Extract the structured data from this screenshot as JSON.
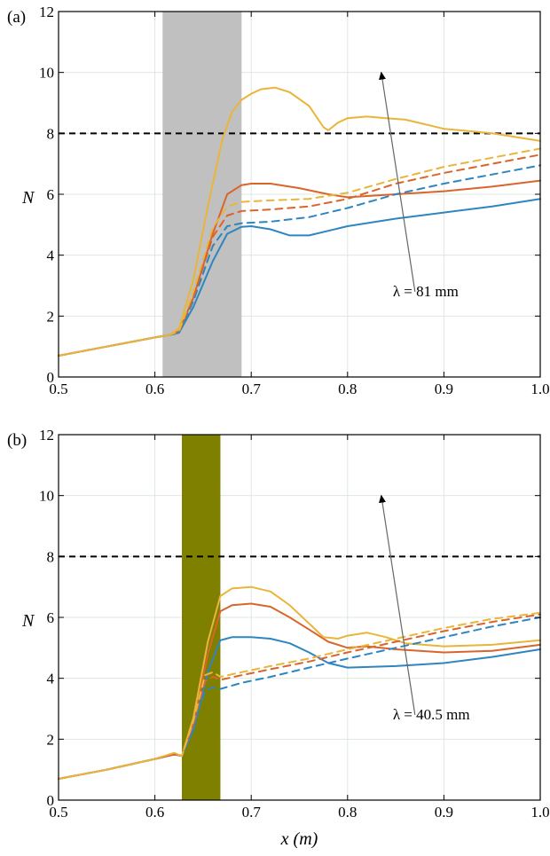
{
  "colors": {
    "series_1": "#2E86C1",
    "series_2": "#D9652B",
    "series_3": "#E9B53A",
    "threshold": "#000000",
    "grid": "#dde8dd",
    "band_a": "#c0c0c0",
    "band_b": "#808000",
    "arrow": "#666666"
  },
  "chart_data": [
    {
      "type": "line",
      "panel_label": "(a)",
      "xlim": [
        0.5,
        1.0
      ],
      "ylim": [
        0,
        12
      ],
      "xticks": [
        "0.5",
        "0.6",
        "0.7",
        "0.8",
        "0.9",
        "1.0"
      ],
      "yticks": [
        "0",
        "2",
        "4",
        "6",
        "8",
        "10",
        "12"
      ],
      "ylabel": "N",
      "grid": true,
      "shaded_band": [
        0.608,
        0.69
      ],
      "threshold_y": 8,
      "annotation": "λ = 81 mm",
      "arrow_from": [
        0.87,
        2.8
      ],
      "arrow_to": [
        0.835,
        10.0
      ],
      "series": [
        {
          "style": "solid",
          "color_key": "series_1",
          "x": [
            0.5,
            0.55,
            0.6,
            0.615,
            0.625,
            0.64,
            0.66,
            0.675,
            0.69,
            0.7,
            0.72,
            0.74,
            0.76,
            0.78,
            0.8,
            0.85,
            0.9,
            0.95,
            1.0
          ],
          "y": [
            0.7,
            1.0,
            1.3,
            1.38,
            1.45,
            2.3,
            3.8,
            4.7,
            4.93,
            4.95,
            4.85,
            4.65,
            4.65,
            4.8,
            4.95,
            5.2,
            5.4,
            5.6,
            5.85
          ]
        },
        {
          "style": "solid",
          "color_key": "series_2",
          "x": [
            0.5,
            0.55,
            0.6,
            0.615,
            0.625,
            0.64,
            0.66,
            0.675,
            0.69,
            0.7,
            0.72,
            0.75,
            0.78,
            0.8,
            0.85,
            0.9,
            0.95,
            1.0
          ],
          "y": [
            0.7,
            1.0,
            1.3,
            1.38,
            1.5,
            2.6,
            4.7,
            6.0,
            6.3,
            6.35,
            6.35,
            6.2,
            6.0,
            5.9,
            6.0,
            6.1,
            6.25,
            6.45
          ]
        },
        {
          "style": "solid",
          "color_key": "series_3",
          "x": [
            0.5,
            0.55,
            0.6,
            0.615,
            0.625,
            0.64,
            0.655,
            0.67,
            0.68,
            0.69,
            0.7,
            0.71,
            0.725,
            0.74,
            0.76,
            0.775,
            0.78,
            0.79,
            0.8,
            0.82,
            0.84,
            0.86,
            0.88,
            0.9,
            0.95,
            1.0
          ],
          "y": [
            0.7,
            1.0,
            1.3,
            1.38,
            1.6,
            3.2,
            5.6,
            7.8,
            8.7,
            9.1,
            9.3,
            9.45,
            9.5,
            9.35,
            8.9,
            8.2,
            8.1,
            8.35,
            8.5,
            8.55,
            8.5,
            8.45,
            8.3,
            8.15,
            8.0,
            7.75
          ]
        },
        {
          "style": "dashed",
          "color_key": "series_1",
          "x": [
            0.5,
            0.55,
            0.6,
            0.615,
            0.625,
            0.64,
            0.66,
            0.675,
            0.69,
            0.72,
            0.76,
            0.8,
            0.85,
            0.9,
            0.95,
            1.0
          ],
          "y": [
            0.7,
            1.0,
            1.3,
            1.38,
            1.45,
            2.5,
            4.3,
            4.95,
            5.05,
            5.1,
            5.25,
            5.55,
            6.0,
            6.35,
            6.65,
            6.95
          ]
        },
        {
          "style": "dashed",
          "color_key": "series_2",
          "x": [
            0.5,
            0.55,
            0.6,
            0.615,
            0.625,
            0.64,
            0.66,
            0.675,
            0.69,
            0.72,
            0.76,
            0.8,
            0.85,
            0.9,
            0.95,
            1.0
          ],
          "y": [
            0.7,
            1.0,
            1.3,
            1.38,
            1.5,
            2.6,
            4.6,
            5.3,
            5.45,
            5.5,
            5.6,
            5.85,
            6.35,
            6.7,
            7.0,
            7.3
          ]
        },
        {
          "style": "dashed",
          "color_key": "series_3",
          "x": [
            0.5,
            0.55,
            0.6,
            0.615,
            0.625,
            0.64,
            0.66,
            0.675,
            0.69,
            0.72,
            0.76,
            0.8,
            0.85,
            0.9,
            0.95,
            1.0
          ],
          "y": [
            0.7,
            1.0,
            1.3,
            1.38,
            1.5,
            2.8,
            4.9,
            5.6,
            5.75,
            5.8,
            5.85,
            6.05,
            6.5,
            6.9,
            7.2,
            7.5
          ]
        }
      ]
    },
    {
      "type": "line",
      "panel_label": "(b)",
      "xlim": [
        0.5,
        1.0
      ],
      "ylim": [
        0,
        12
      ],
      "xticks": [
        "0.5",
        "0.6",
        "0.7",
        "0.8",
        "0.9",
        "1.0"
      ],
      "yticks": [
        "0",
        "2",
        "4",
        "6",
        "8",
        "10",
        "12"
      ],
      "xlabel": "x (m)",
      "ylabel": "N",
      "grid": true,
      "shaded_band": [
        0.628,
        0.668
      ],
      "threshold_y": 8,
      "annotation": "λ = 40.5 mm",
      "arrow_from": [
        0.87,
        2.8
      ],
      "arrow_to": [
        0.835,
        10.0
      ],
      "series": [
        {
          "style": "solid",
          "color_key": "series_1",
          "x": [
            0.5,
            0.55,
            0.6,
            0.62,
            0.628,
            0.64,
            0.655,
            0.668,
            0.68,
            0.7,
            0.72,
            0.74,
            0.76,
            0.78,
            0.8,
            0.85,
            0.9,
            0.95,
            1.0
          ],
          "y": [
            0.7,
            1.0,
            1.35,
            1.5,
            1.45,
            2.3,
            4.2,
            5.25,
            5.35,
            5.35,
            5.3,
            5.15,
            4.85,
            4.5,
            4.35,
            4.4,
            4.5,
            4.7,
            4.95
          ]
        },
        {
          "style": "solid",
          "color_key": "series_2",
          "x": [
            0.5,
            0.55,
            0.6,
            0.62,
            0.628,
            0.64,
            0.655,
            0.668,
            0.68,
            0.7,
            0.72,
            0.74,
            0.76,
            0.78,
            0.8,
            0.82,
            0.85,
            0.9,
            0.95,
            1.0
          ],
          "y": [
            0.7,
            1.0,
            1.35,
            1.5,
            1.45,
            2.5,
            4.8,
            6.2,
            6.4,
            6.45,
            6.35,
            6.0,
            5.6,
            5.2,
            5.0,
            5.05,
            4.95,
            4.85,
            4.9,
            5.1
          ]
        },
        {
          "style": "solid",
          "color_key": "series_3",
          "x": [
            0.5,
            0.55,
            0.6,
            0.62,
            0.628,
            0.64,
            0.655,
            0.668,
            0.68,
            0.7,
            0.72,
            0.74,
            0.76,
            0.775,
            0.79,
            0.8,
            0.82,
            0.84,
            0.86,
            0.9,
            0.95,
            1.0
          ],
          "y": [
            0.7,
            1.0,
            1.35,
            1.55,
            1.45,
            2.7,
            5.2,
            6.7,
            6.95,
            7.0,
            6.85,
            6.4,
            5.8,
            5.35,
            5.3,
            5.4,
            5.5,
            5.35,
            5.15,
            5.05,
            5.1,
            5.25
          ]
        },
        {
          "style": "dashed",
          "color_key": "series_1",
          "x": [
            0.5,
            0.55,
            0.6,
            0.62,
            0.628,
            0.64,
            0.652,
            0.66,
            0.668,
            0.69,
            0.72,
            0.76,
            0.8,
            0.85,
            0.9,
            0.95,
            1.0
          ],
          "y": [
            0.7,
            1.0,
            1.35,
            1.5,
            1.45,
            2.4,
            3.6,
            3.7,
            3.65,
            3.85,
            4.05,
            4.35,
            4.65,
            5.0,
            5.35,
            5.7,
            6.0
          ]
        },
        {
          "style": "dashed",
          "color_key": "series_2",
          "x": [
            0.5,
            0.55,
            0.6,
            0.62,
            0.628,
            0.64,
            0.652,
            0.66,
            0.668,
            0.69,
            0.72,
            0.76,
            0.8,
            0.85,
            0.9,
            0.95,
            1.0
          ],
          "y": [
            0.7,
            1.0,
            1.35,
            1.5,
            1.45,
            2.5,
            3.9,
            4.05,
            3.95,
            4.1,
            4.3,
            4.55,
            4.85,
            5.2,
            5.55,
            5.85,
            6.1
          ]
        },
        {
          "style": "dashed",
          "color_key": "series_3",
          "x": [
            0.5,
            0.55,
            0.6,
            0.62,
            0.628,
            0.64,
            0.652,
            0.66,
            0.668,
            0.69,
            0.72,
            0.76,
            0.8,
            0.85,
            0.9,
            0.95,
            1.0
          ],
          "y": [
            0.7,
            1.0,
            1.35,
            1.55,
            1.45,
            2.6,
            4.1,
            4.2,
            4.05,
            4.2,
            4.4,
            4.65,
            4.95,
            5.3,
            5.65,
            5.95,
            6.15
          ]
        }
      ]
    }
  ]
}
